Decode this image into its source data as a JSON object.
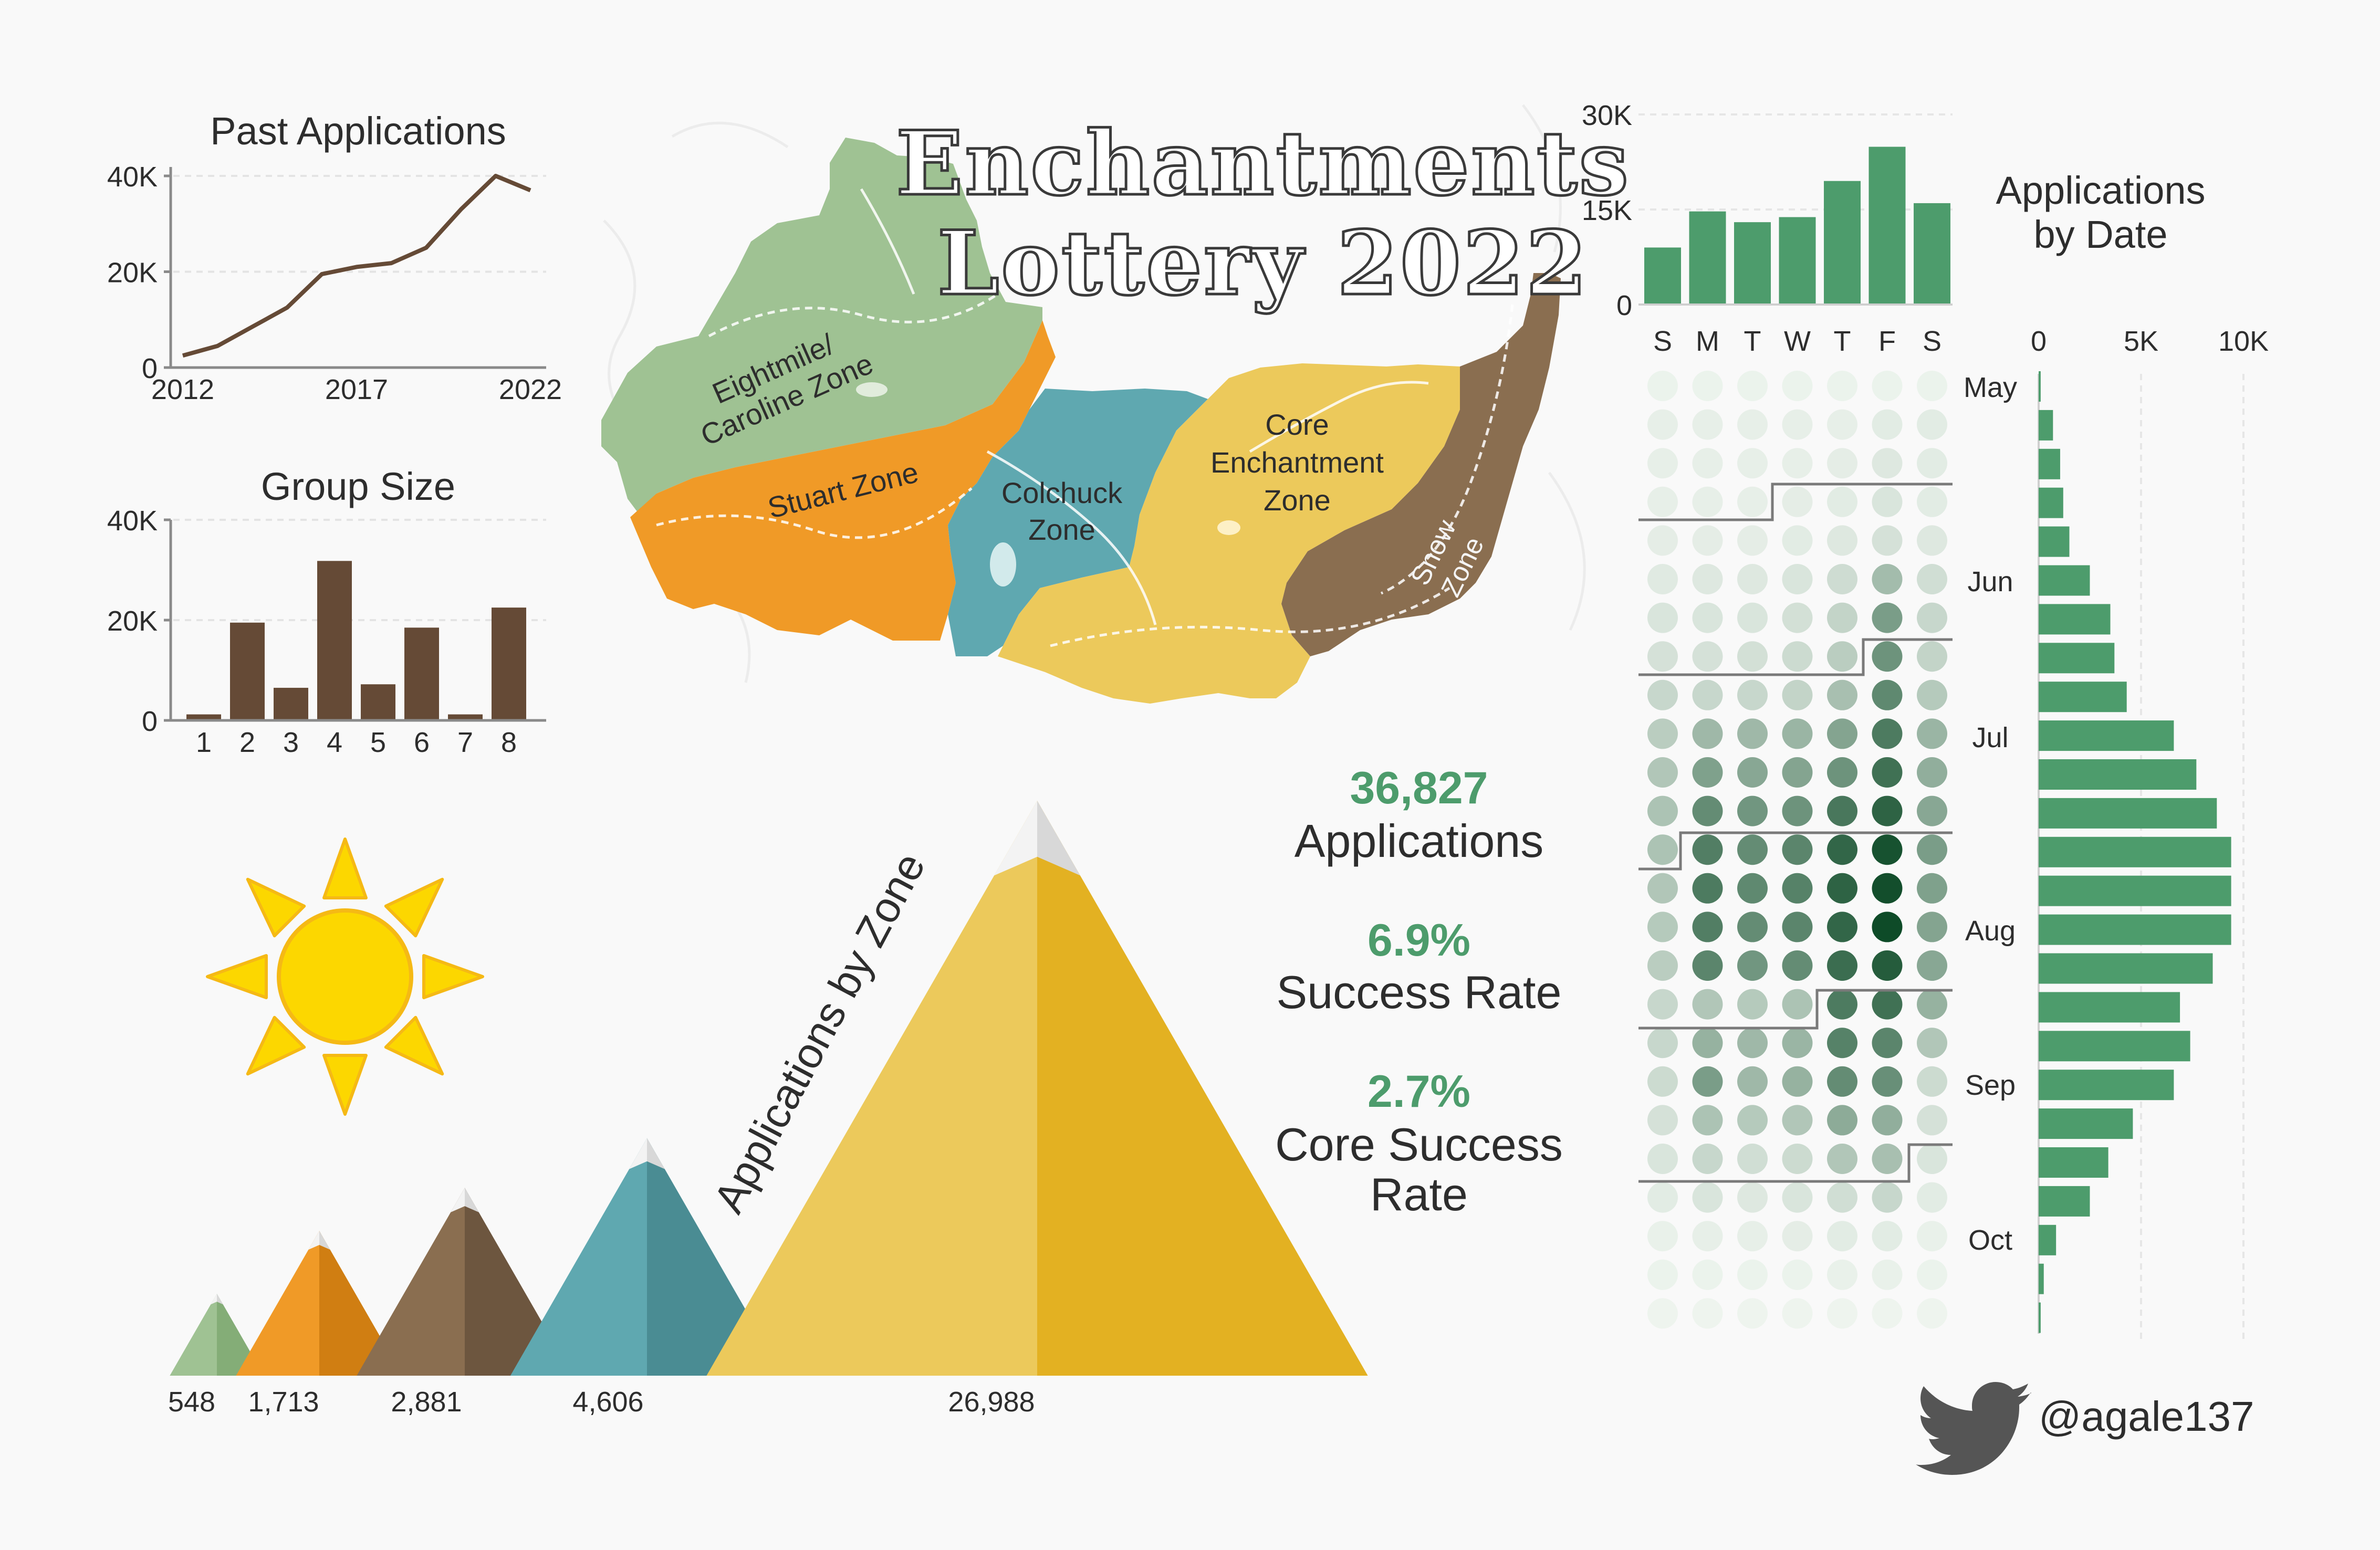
{
  "title": {
    "line1": "Enchantments",
    "line2": "Lottery 2022"
  },
  "colors": {
    "brown": "#654a36",
    "green": "#4d9c6c",
    "eightmile": "#9fc293",
    "stuart": "#f09a27",
    "colchuck": "#5fa8b0",
    "core": "#ecc95b",
    "snow": "#8a6e50",
    "sun": "#fcd700",
    "sunEdge": "#f5b915"
  },
  "chart_data": [
    {
      "id": "past_applications",
      "type": "line",
      "title": "Past Applications",
      "x": [
        2012,
        2013,
        2014,
        2015,
        2016,
        2017,
        2018,
        2019,
        2020,
        2021,
        2022
      ],
      "y": [
        2500,
        4500,
        8500,
        12500,
        19500,
        21000,
        21800,
        25000,
        33000,
        40000,
        37000
      ],
      "x_ticks": [
        2012,
        2017,
        2022
      ],
      "y_ticks": [
        "0",
        "20K",
        "40K"
      ],
      "ylim": [
        0,
        40000
      ],
      "grid": true
    },
    {
      "id": "group_size",
      "type": "bar",
      "title": "Group Size",
      "categories": [
        "1",
        "2",
        "3",
        "4",
        "5",
        "6",
        "7",
        "8"
      ],
      "values": [
        1200,
        19500,
        6500,
        31800,
        7200,
        18500,
        1200,
        22500
      ],
      "y_ticks": [
        "0",
        "20K",
        "40K"
      ],
      "ylim": [
        0,
        40000
      ],
      "grid": true
    },
    {
      "id": "applications_by_zone",
      "type": "bar",
      "title": "Applications by Zone",
      "categories": [
        "Eightmile/Caroline Zone",
        "Stuart Zone",
        "Colchuck Zone",
        "Snow Zone",
        "Core Enchantment Zone"
      ],
      "values": [
        548,
        1713,
        2881,
        4606,
        26988
      ],
      "value_labels": [
        "548",
        "1,713",
        "2,881",
        "4,606",
        "26,988"
      ]
    },
    {
      "id": "applications_by_weekday",
      "type": "bar",
      "categories": [
        "S",
        "M",
        "T",
        "W",
        "T",
        "F",
        "S"
      ],
      "values": [
        9000,
        14700,
        13000,
        13800,
        19500,
        24900,
        16000
      ],
      "y_ticks": [
        "0",
        "15K",
        "30K"
      ],
      "ylim": [
        0,
        30000
      ]
    },
    {
      "id": "applications_by_week",
      "type": "bar",
      "title": "Applications by Date",
      "orientation": "horizontal",
      "month_labels": [
        "May",
        "Jun",
        "Jul",
        "Aug",
        "Sep",
        "Oct"
      ],
      "x_ticks": [
        "0",
        "5K",
        "10K"
      ],
      "xlim": [
        0,
        10000
      ],
      "values": [
        100,
        700,
        1050,
        1200,
        1500,
        2500,
        3500,
        3700,
        4300,
        6600,
        7700,
        8700,
        9400,
        9400,
        9400,
        8500,
        6900,
        7400,
        6600,
        4600,
        3400,
        2500,
        850,
        250,
        100
      ],
      "grid": true
    },
    {
      "id": "applications_by_day_heatmap",
      "type": "heatmap",
      "rows": 25,
      "cols": 7,
      "intensity": [
        [
          0.02,
          0.02,
          0.02,
          0.02,
          0.02,
          0.02,
          0.02
        ],
        [
          0.04,
          0.04,
          0.04,
          0.04,
          0.04,
          0.06,
          0.06
        ],
        [
          0.04,
          0.04,
          0.04,
          0.04,
          0.05,
          0.08,
          0.06
        ],
        [
          0.04,
          0.04,
          0.04,
          0.05,
          0.06,
          0.1,
          0.06
        ],
        [
          0.05,
          0.05,
          0.05,
          0.06,
          0.08,
          0.12,
          0.08
        ],
        [
          0.07,
          0.08,
          0.08,
          0.1,
          0.15,
          0.34,
          0.14
        ],
        [
          0.1,
          0.1,
          0.1,
          0.13,
          0.2,
          0.52,
          0.18
        ],
        [
          0.12,
          0.12,
          0.13,
          0.16,
          0.24,
          0.58,
          0.2
        ],
        [
          0.18,
          0.18,
          0.18,
          0.2,
          0.32,
          0.64,
          0.26
        ],
        [
          0.24,
          0.36,
          0.36,
          0.38,
          0.48,
          0.72,
          0.38
        ],
        [
          0.28,
          0.5,
          0.46,
          0.48,
          0.58,
          0.78,
          0.42
        ],
        [
          0.3,
          0.62,
          0.56,
          0.58,
          0.74,
          0.86,
          0.46
        ],
        [
          0.3,
          0.7,
          0.62,
          0.66,
          0.84,
          0.96,
          0.52
        ],
        [
          0.28,
          0.72,
          0.64,
          0.68,
          0.86,
          0.98,
          0.5
        ],
        [
          0.26,
          0.7,
          0.62,
          0.66,
          0.84,
          1.0,
          0.48
        ],
        [
          0.24,
          0.66,
          0.56,
          0.62,
          0.8,
          0.9,
          0.46
        ],
        [
          0.18,
          0.28,
          0.26,
          0.3,
          0.72,
          0.78,
          0.4
        ],
        [
          0.18,
          0.4,
          0.36,
          0.38,
          0.68,
          0.66,
          0.28
        ],
        [
          0.16,
          0.52,
          0.36,
          0.4,
          0.62,
          0.6,
          0.16
        ],
        [
          0.12,
          0.3,
          0.26,
          0.28,
          0.44,
          0.42,
          0.12
        ],
        [
          0.1,
          0.18,
          0.14,
          0.16,
          0.28,
          0.32,
          0.1
        ],
        [
          0.06,
          0.1,
          0.08,
          0.1,
          0.14,
          0.18,
          0.06
        ],
        [
          0.03,
          0.04,
          0.04,
          0.05,
          0.06,
          0.06,
          0.03
        ],
        [
          0.02,
          0.02,
          0.02,
          0.02,
          0.03,
          0.03,
          0.02
        ],
        [
          0.01,
          0.01,
          0.01,
          0.01,
          0.01,
          0.01,
          0.01
        ]
      ]
    }
  ],
  "map": {
    "zones": {
      "eightmile": "Eightmile/\nCaroline Zone",
      "stuart": "Stuart Zone",
      "colchuck": "Colchuck\nZone",
      "core": "Core\nEnchantment\nZone",
      "snow": "Snow\nZone"
    }
  },
  "stats": {
    "applications_value": "36,827",
    "applications_label": "Applications",
    "success_value": "6.9%",
    "success_label": "Success Rate",
    "core_value": "2.7%",
    "core_label_line1": "Core Success",
    "core_label_line2": "Rate"
  },
  "credit": {
    "handle": "@agale137"
  }
}
